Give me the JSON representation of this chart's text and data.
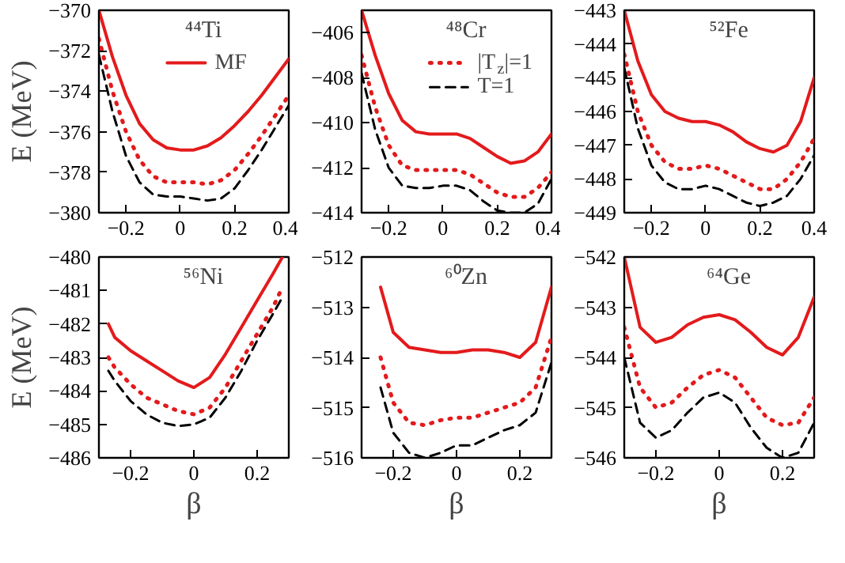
{
  "chart_data": [
    {
      "type": "line",
      "annotations": [
        "⁴⁴Ti"
      ],
      "ylabel": "E (MeV)",
      "xlim": [
        -0.3,
        0.4
      ],
      "ylim": [
        -380,
        -370
      ],
      "xticks": [
        -0.2,
        0,
        0.2,
        0.4
      ],
      "yticks": [
        -380,
        -378,
        -376,
        -374,
        -372,
        -370
      ],
      "legend": "top right",
      "x": [
        -0.3,
        -0.25,
        -0.2,
        -0.15,
        -0.1,
        -0.05,
        0,
        0.05,
        0.1,
        0.15,
        0.2,
        0.25,
        0.3,
        0.35,
        0.4
      ],
      "series": [
        {
          "name": "MF",
          "color": "#e31a1c",
          "line_style": "solid",
          "values": [
            -370,
            -372.3,
            -374.2,
            -375.6,
            -376.4,
            -376.8,
            -376.9,
            -376.9,
            -376.7,
            -376.3,
            -375.7,
            -375.0,
            -374.2,
            -373.3,
            -372.4
          ]
        },
        {
          "color": "#e31a1c",
          "line_style": "dotted",
          "values": [
            -371.4,
            -374.0,
            -376.0,
            -377.4,
            -378.2,
            -378.5,
            -378.5,
            -378.5,
            -378.6,
            -378.4,
            -377.9,
            -377.1,
            -376.2,
            -375.2,
            -374.2
          ]
        },
        {
          "color": "#000000",
          "line_style": "dashed",
          "values": [
            -372.2,
            -375.0,
            -377.2,
            -378.5,
            -379.1,
            -379.2,
            -379.2,
            -379.3,
            -379.4,
            -379.3,
            -378.8,
            -377.9,
            -376.9,
            -375.8,
            -374.7
          ]
        }
      ]
    },
    {
      "type": "line",
      "annotations": [
        "⁴⁸Cr"
      ],
      "xlim": [
        -0.3,
        0.4
      ],
      "ylim": [
        -414,
        -405
      ],
      "xticks": [
        -0.2,
        0,
        0.2,
        0.4
      ],
      "yticks": [
        -414,
        -412,
        -410,
        -408,
        -406
      ],
      "legend": "top right",
      "x": [
        -0.3,
        -0.25,
        -0.2,
        -0.15,
        -0.1,
        -0.05,
        0,
        0.05,
        0.1,
        0.15,
        0.2,
        0.25,
        0.3,
        0.35,
        0.4
      ],
      "series": [
        {
          "color": "#e31a1c",
          "line_style": "solid",
          "values": [
            -405.0,
            -407.0,
            -408.7,
            -409.9,
            -410.4,
            -410.5,
            -410.5,
            -410.5,
            -410.7,
            -411.1,
            -411.5,
            -411.8,
            -411.7,
            -411.3,
            -410.5
          ]
        },
        {
          "name": "|T$_{z}$|=1",
          "color": "#e31a1c",
          "line_style": "dotted",
          "values": [
            -407.0,
            -409.3,
            -411.0,
            -411.9,
            -412.1,
            -412.1,
            -412.1,
            -412.1,
            -412.3,
            -412.7,
            -413.1,
            -413.3,
            -413.3,
            -412.9,
            -412.2
          ]
        },
        {
          "name": "T=1",
          "color": "#000000",
          "line_style": "dashed",
          "values": [
            -407.8,
            -410.3,
            -412.0,
            -412.8,
            -412.9,
            -412.9,
            -412.8,
            -412.8,
            -413.0,
            -413.5,
            -413.9,
            -414.0,
            -414.0,
            -413.6,
            -412.5
          ]
        }
      ]
    },
    {
      "type": "line",
      "annotations": [
        "⁵²Fe"
      ],
      "xlim": [
        -0.3,
        0.4
      ],
      "ylim": [
        -449,
        -443
      ],
      "xticks": [
        -0.2,
        0,
        0.2,
        0.4
      ],
      "yticks": [
        -449,
        -448,
        -447,
        -446,
        -445,
        -444,
        -443
      ],
      "x": [
        -0.3,
        -0.25,
        -0.2,
        -0.15,
        -0.1,
        -0.05,
        0,
        0.05,
        0.1,
        0.15,
        0.2,
        0.25,
        0.3,
        0.35,
        0.4
      ],
      "series": [
        {
          "color": "#e31a1c",
          "line_style": "solid",
          "values": [
            -443.0,
            -444.5,
            -445.5,
            -446.0,
            -446.2,
            -446.3,
            -446.3,
            -446.4,
            -446.6,
            -446.9,
            -447.1,
            -447.2,
            -447.0,
            -446.3,
            -445.0
          ]
        },
        {
          "color": "#e31a1c",
          "line_style": "dotted",
          "values": [
            -444.3,
            -446.0,
            -447.0,
            -447.5,
            -447.7,
            -447.7,
            -447.6,
            -447.7,
            -447.9,
            -448.1,
            -448.3,
            -448.3,
            -448.0,
            -447.5,
            -446.8
          ]
        },
        {
          "color": "#000000",
          "line_style": "dashed",
          "values": [
            -444.7,
            -446.5,
            -447.6,
            -448.1,
            -448.3,
            -448.3,
            -448.2,
            -448.3,
            -448.5,
            -448.7,
            -448.8,
            -448.7,
            -448.5,
            -448.0,
            -447.3
          ]
        }
      ]
    },
    {
      "type": "line",
      "annotations": [
        "⁵⁶Ni"
      ],
      "ylabel": "E (MeV)",
      "xlabel": "β",
      "xlim": [
        -0.3,
        0.3
      ],
      "ylim": [
        -486,
        -480
      ],
      "xticks": [
        -0.2,
        0,
        0.2
      ],
      "yticks": [
        -486,
        -485,
        -484,
        -483,
        -482,
        -481,
        -480
      ],
      "x": [
        -0.27,
        -0.25,
        -0.2,
        -0.15,
        -0.1,
        -0.05,
        0,
        0.05,
        0.1,
        0.15,
        0.2,
        0.25,
        0.28
      ],
      "series": [
        {
          "color": "#e31a1c",
          "line_style": "solid",
          "values": [
            -482.0,
            -482.4,
            -482.8,
            -483.1,
            -483.4,
            -483.7,
            -483.9,
            -483.6,
            -482.9,
            -482.1,
            -481.3,
            -480.5,
            -480.0
          ]
        },
        {
          "color": "#e31a1c",
          "line_style": "dotted",
          "values": [
            -483.0,
            -483.3,
            -483.8,
            -484.2,
            -484.4,
            -484.6,
            -484.7,
            -484.5,
            -483.9,
            -483.1,
            -482.3,
            -481.5,
            -480.9
          ]
        },
        {
          "color": "#000000",
          "line_style": "dashed",
          "values": [
            -483.4,
            -483.7,
            -484.3,
            -484.7,
            -484.95,
            -485.05,
            -485.0,
            -484.8,
            -484.2,
            -483.4,
            -482.5,
            -481.7,
            -481.2
          ]
        }
      ]
    },
    {
      "type": "line",
      "annotations": [
        "⁶⁰Zn"
      ],
      "xlabel": "β",
      "xlim": [
        -0.3,
        0.3
      ],
      "ylim": [
        -516,
        -512
      ],
      "xticks": [
        -0.2,
        0,
        0.2
      ],
      "yticks": [
        -516,
        -515,
        -514,
        -513,
        -512
      ],
      "x": [
        -0.24,
        -0.2,
        -0.15,
        -0.1,
        -0.05,
        0,
        0.05,
        0.1,
        0.15,
        0.2,
        0.25,
        0.3
      ],
      "series": [
        {
          "color": "#e31a1c",
          "line_style": "solid",
          "values": [
            -512.6,
            -513.5,
            -513.8,
            -513.85,
            -513.9,
            -513.9,
            -513.85,
            -513.85,
            -513.9,
            -514.0,
            -513.7,
            -512.6
          ]
        },
        {
          "color": "#e31a1c",
          "line_style": "dotted",
          "values": [
            -514.0,
            -514.9,
            -515.3,
            -515.35,
            -515.25,
            -515.2,
            -515.2,
            -515.1,
            -515.0,
            -514.9,
            -514.6,
            -513.6
          ]
        },
        {
          "color": "#000000",
          "line_style": "dashed",
          "values": [
            -514.6,
            -515.5,
            -515.9,
            -516.0,
            -515.9,
            -515.75,
            -515.75,
            -515.6,
            -515.45,
            -515.35,
            -515.1,
            -514.1
          ]
        }
      ]
    },
    {
      "type": "line",
      "annotations": [
        "⁶⁴Ge"
      ],
      "xlabel": "β",
      "xlim": [
        -0.3,
        0.3
      ],
      "ylim": [
        -546,
        -542
      ],
      "xticks": [
        -0.2,
        0,
        0.2
      ],
      "yticks": [
        -546,
        -545,
        -544,
        -543,
        -542
      ],
      "x": [
        -0.3,
        -0.25,
        -0.2,
        -0.15,
        -0.1,
        -0.05,
        0,
        0.05,
        0.1,
        0.15,
        0.2,
        0.25,
        0.3
      ],
      "series": [
        {
          "color": "#e31a1c",
          "line_style": "solid",
          "values": [
            -542.0,
            -543.4,
            -543.7,
            -543.6,
            -543.35,
            -543.2,
            -543.15,
            -543.25,
            -543.5,
            -543.8,
            -543.95,
            -543.6,
            -542.8
          ]
        },
        {
          "color": "#e31a1c",
          "line_style": "dotted",
          "values": [
            -543.4,
            -544.6,
            -545.0,
            -544.9,
            -544.6,
            -544.35,
            -544.25,
            -544.4,
            -544.8,
            -545.2,
            -545.35,
            -545.3,
            -544.8
          ]
        },
        {
          "color": "#000000",
          "line_style": "dashed",
          "values": [
            -544.0,
            -545.3,
            -545.6,
            -545.45,
            -545.1,
            -544.8,
            -544.7,
            -544.9,
            -545.4,
            -545.8,
            -546.0,
            -545.9,
            -545.3
          ]
        }
      ]
    }
  ]
}
